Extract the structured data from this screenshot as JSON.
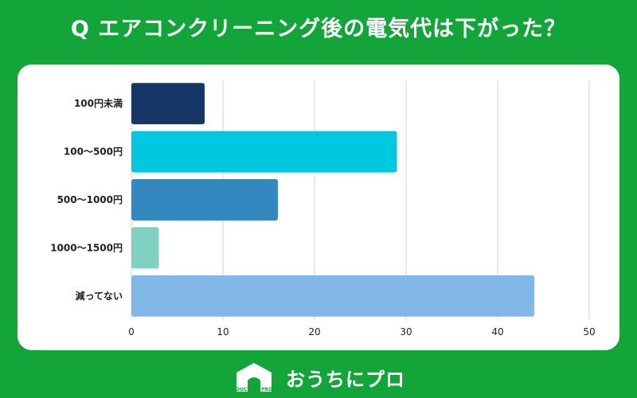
{
  "title": "Q エアコンクリーニング後の電気代は下がった？",
  "chart_data": {
    "type": "bar",
    "orientation": "horizontal",
    "categories": [
      "100円未満",
      "100～500円",
      "500～1000円",
      "1000～1500円",
      "減ってない"
    ],
    "values": [
      8,
      29,
      16,
      3,
      44
    ],
    "colors": [
      "#163667",
      "#00c8e0",
      "#3389bf",
      "#7fd1c1",
      "#82b8e8"
    ],
    "xlim": [
      0,
      50
    ],
    "xticks": [
      "0",
      "10",
      "20",
      "30",
      "40",
      "50"
    ],
    "grid": true
  },
  "footer": {
    "logo_text": "おうちにプロ",
    "logo_badge": "OUCHI ni PRO"
  }
}
